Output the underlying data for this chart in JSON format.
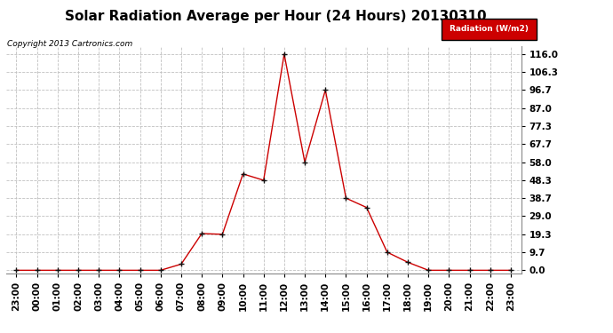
{
  "title": "Solar Radiation Average per Hour (24 Hours) 20130310",
  "copyright": "Copyright 2013 Cartronics.com",
  "legend_label": "Radiation (W/m2)",
  "hours": [
    "23:00",
    "00:00",
    "01:00",
    "02:00",
    "03:00",
    "04:00",
    "05:00",
    "06:00",
    "07:00",
    "08:00",
    "09:00",
    "10:00",
    "11:00",
    "12:00",
    "13:00",
    "14:00",
    "15:00",
    "16:00",
    "17:00",
    "18:00",
    "19:00",
    "20:00",
    "21:00",
    "22:00",
    "23:00"
  ],
  "values": [
    0.0,
    0.0,
    0.0,
    0.0,
    0.0,
    0.0,
    0.0,
    0.0,
    3.3,
    19.7,
    19.3,
    51.7,
    48.3,
    116.0,
    58.0,
    96.7,
    38.7,
    33.7,
    9.7,
    4.3,
    0.0,
    0.0,
    0.0,
    0.0,
    0.0
  ],
  "yticks": [
    0.0,
    9.7,
    19.3,
    29.0,
    38.7,
    48.3,
    58.0,
    67.7,
    77.3,
    87.0,
    96.7,
    106.3,
    116.0
  ],
  "line_color": "#cc0000",
  "marker_color": "#111111",
  "bg_color": "#ffffff",
  "grid_color": "#c0c0c0",
  "legend_bg": "#cc0000",
  "legend_text_color": "#ffffff",
  "title_fontsize": 11,
  "copyright_fontsize": 6.5,
  "axis_fontsize": 7.5,
  "ylim": [
    0.0,
    116.0
  ]
}
